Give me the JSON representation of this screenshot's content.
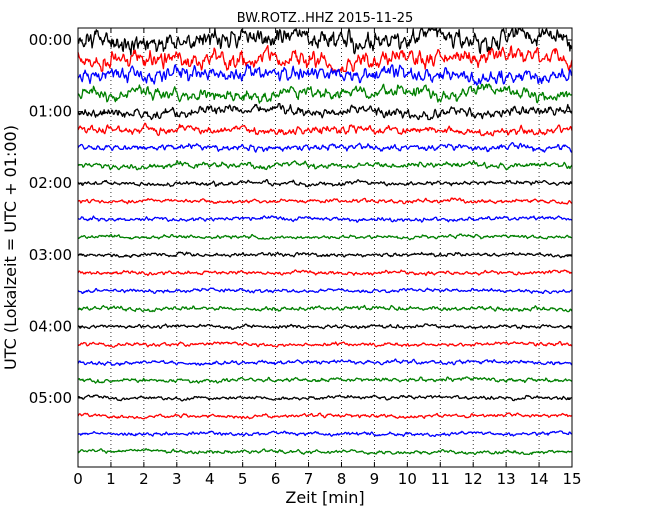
{
  "chart_data": {
    "type": "line",
    "title": "BW.ROTZ..HHZ 2015-11-25",
    "xlabel": "Zeit  [min]",
    "ylabel": "UTC (Lokalzeit = UTC + 01:00)",
    "xlim": [
      0,
      15
    ],
    "x_ticks": [
      "0",
      "1",
      "2",
      "3",
      "4",
      "5",
      "6",
      "7",
      "8",
      "9",
      "10",
      "11",
      "12",
      "13",
      "14",
      "15"
    ],
    "y_ticks": [
      "00:00",
      "01:00",
      "02:00",
      "03:00",
      "04:00",
      "05:00"
    ],
    "x_grid": "dotted vertical lines at each minute",
    "trace_interval_min": 15,
    "trace_count": 24,
    "trace_colors": [
      "#000000",
      "#ff0000",
      "#0000ff",
      "#008000"
    ],
    "series": [
      {
        "start": "00:00",
        "color": "#000000",
        "amplitude": 1.0
      },
      {
        "start": "00:15",
        "color": "#ff0000",
        "amplitude": 0.85
      },
      {
        "start": "00:30",
        "color": "#0000ff",
        "amplitude": 0.7
      },
      {
        "start": "00:45",
        "color": "#008000",
        "amplitude": 0.6
      },
      {
        "start": "01:00",
        "color": "#000000",
        "amplitude": 0.5
      },
      {
        "start": "01:15",
        "color": "#ff0000",
        "amplitude": 0.4
      },
      {
        "start": "01:30",
        "color": "#0000ff",
        "amplitude": 0.3
      },
      {
        "start": "01:45",
        "color": "#008000",
        "amplitude": 0.28
      },
      {
        "start": "02:00",
        "color": "#000000",
        "amplitude": 0.22
      },
      {
        "start": "02:15",
        "color": "#ff0000",
        "amplitude": 0.2
      },
      {
        "start": "02:30",
        "color": "#0000ff",
        "amplitude": 0.2
      },
      {
        "start": "02:45",
        "color": "#008000",
        "amplitude": 0.18
      },
      {
        "start": "03:00",
        "color": "#000000",
        "amplitude": 0.18
      },
      {
        "start": "03:15",
        "color": "#ff0000",
        "amplitude": 0.18
      },
      {
        "start": "03:30",
        "color": "#0000ff",
        "amplitude": 0.18
      },
      {
        "start": "03:45",
        "color": "#008000",
        "amplitude": 0.2
      },
      {
        "start": "04:00",
        "color": "#000000",
        "amplitude": 0.18
      },
      {
        "start": "04:15",
        "color": "#ff0000",
        "amplitude": 0.18
      },
      {
        "start": "04:30",
        "color": "#0000ff",
        "amplitude": 0.2
      },
      {
        "start": "04:45",
        "color": "#008000",
        "amplitude": 0.2
      },
      {
        "start": "05:00",
        "color": "#000000",
        "amplitude": 0.18
      },
      {
        "start": "05:15",
        "color": "#ff0000",
        "amplitude": 0.18
      },
      {
        "start": "05:30",
        "color": "#0000ff",
        "amplitude": 0.18
      },
      {
        "start": "05:45",
        "color": "#008000",
        "amplitude": 0.18
      }
    ]
  }
}
